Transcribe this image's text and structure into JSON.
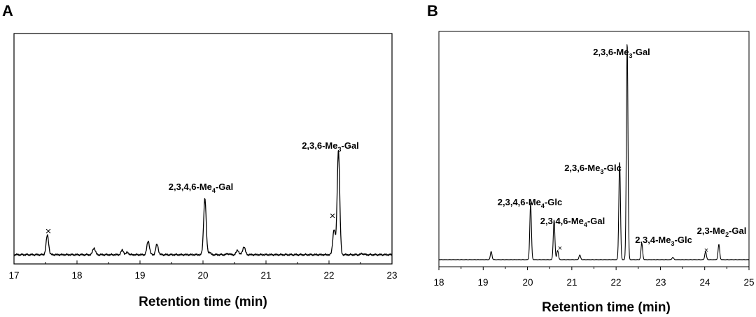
{
  "panels": [
    {
      "letter": "A",
      "xlabel": "Retention time (min)",
      "ticks": [
        "17",
        "18",
        "19",
        "20",
        "21",
        "22",
        "23"
      ],
      "annotations": [
        {
          "pre": "2,3,4,6-Me",
          "sub": "4",
          "post": "-Gal"
        },
        {
          "pre": "2,3,6-Me",
          "sub": "3",
          "post": "-Gal"
        }
      ],
      "markers": [
        "×",
        "×"
      ]
    },
    {
      "letter": "B",
      "xlabel": "Retention time (min)",
      "ticks": [
        "18",
        "19",
        "20",
        "21",
        "22",
        "23",
        "24",
        "25"
      ],
      "annotations": [
        {
          "pre": "2,3,6-Me",
          "sub": "3",
          "post": "-Gal"
        },
        {
          "pre": "2,3,6-Me",
          "sub": "3",
          "post": "-Glc"
        },
        {
          "pre": "2,3,4,6-Me",
          "sub": "4",
          "post": "-Glc"
        },
        {
          "pre": "2,3,4,6-Me",
          "sub": "4",
          "post": "-Gal"
        },
        {
          "pre": "2,3,4-Me",
          "sub": "3",
          "post": "-Glc"
        },
        {
          "pre": "2,3-Me",
          "sub": "2",
          "post": "-Gal"
        }
      ],
      "markers": [
        "×",
        "×"
      ]
    }
  ],
  "chart_data": [
    {
      "type": "line",
      "panel": "A",
      "xlabel": "Retention time (min)",
      "ylabel": "",
      "xlim": [
        17,
        23
      ],
      "ylim": [
        0,
        1
      ],
      "x_ticks": [
        17,
        18,
        19,
        20,
        21,
        22,
        23
      ],
      "y_axis_labels": false,
      "baseline": 0.04,
      "peaks": [
        {
          "x": 17.53,
          "y": 0.125
        },
        {
          "x": 18.27,
          "y": 0.07
        },
        {
          "x": 18.72,
          "y": 0.06
        },
        {
          "x": 18.8,
          "y": 0.05
        },
        {
          "x": 19.13,
          "y": 0.1
        },
        {
          "x": 19.27,
          "y": 0.085
        },
        {
          "x": 19.6,
          "y": 0.04
        },
        {
          "x": 20.03,
          "y": 0.285
        },
        {
          "x": 20.1,
          "y": 0.05
        },
        {
          "x": 20.4,
          "y": 0.045
        },
        {
          "x": 20.55,
          "y": 0.06
        },
        {
          "x": 20.65,
          "y": 0.075
        },
        {
          "x": 22.08,
          "y": 0.15
        },
        {
          "x": 22.15,
          "y": 0.495
        },
        {
          "x": 22.53,
          "y": 0.045
        },
        {
          "x": 22.98,
          "y": 0.04
        }
      ],
      "annotations": [
        {
          "label": "2,3,4,6-Me4-Gal",
          "x": 20.03
        },
        {
          "label": "2,3,6-Me3-Gal",
          "x": 22.15
        }
      ],
      "contaminant_markers_x": [
        17.53,
        22.05
      ]
    },
    {
      "type": "line",
      "panel": "B",
      "xlabel": "Retention time (min)",
      "ylabel": "",
      "xlim": [
        18,
        25
      ],
      "ylim": [
        0,
        1
      ],
      "x_ticks": [
        18,
        19,
        20,
        21,
        22,
        23,
        24,
        25
      ],
      "y_axis_labels": false,
      "baseline": 0.03,
      "peaks": [
        {
          "x": 19.18,
          "y": 0.065
        },
        {
          "x": 20.07,
          "y": 0.27
        },
        {
          "x": 20.6,
          "y": 0.2
        },
        {
          "x": 20.68,
          "y": 0.07
        },
        {
          "x": 21.18,
          "y": 0.05
        },
        {
          "x": 22.08,
          "y": 0.45
        },
        {
          "x": 22.25,
          "y": 0.96
        },
        {
          "x": 22.58,
          "y": 0.1
        },
        {
          "x": 23.28,
          "y": 0.04
        },
        {
          "x": 24.02,
          "y": 0.065
        },
        {
          "x": 24.32,
          "y": 0.095
        }
      ],
      "annotations": [
        {
          "label": "2,3,6-Me3-Gal",
          "x": 22.25
        },
        {
          "label": "2,3,6-Me3-Glc",
          "x": 22.08
        },
        {
          "label": "2,3,4,6-Me4-Glc",
          "x": 20.07
        },
        {
          "label": "2,3,4,6-Me4-Gal",
          "x": 20.6
        },
        {
          "label": "2,3,4-Me3-Glc",
          "x": 22.58
        },
        {
          "label": "2,3-Me2-Gal",
          "x": 24.32
        }
      ],
      "contaminant_markers_x": [
        20.68,
        24.02
      ]
    }
  ]
}
